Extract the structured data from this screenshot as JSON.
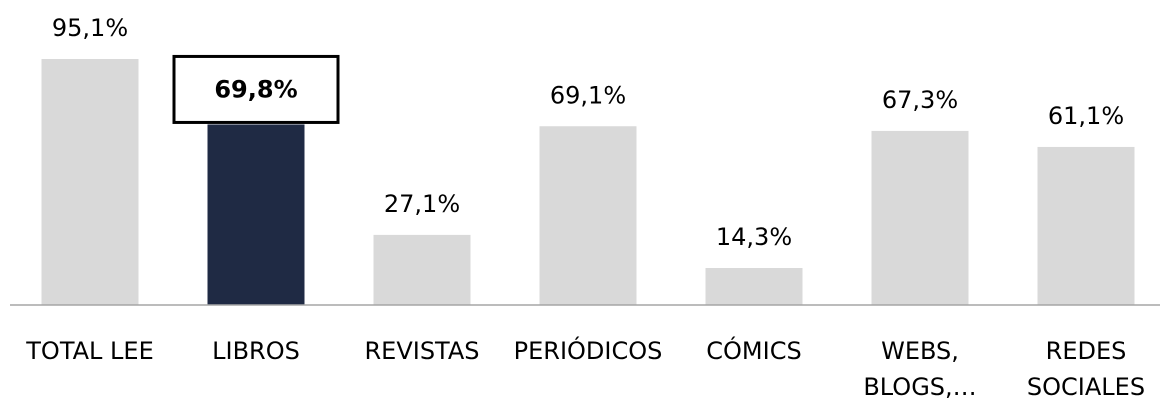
{
  "chart_data": {
    "type": "bar",
    "categories": [
      [
        "TOTAL LEE"
      ],
      [
        "LIBROS"
      ],
      [
        "REVISTAS"
      ],
      [
        "PERIÓDICOS"
      ],
      [
        "CÓMICS"
      ],
      [
        "WEBS,",
        "BLOGS,…"
      ],
      [
        "REDES",
        "SOCIALES"
      ]
    ],
    "values": [
      95.1,
      69.8,
      27.1,
      69.1,
      14.3,
      67.3,
      61.1
    ],
    "value_labels": [
      "95,1%",
      "69,8%",
      "27,1%",
      "69,1%",
      "14,3%",
      "67,3%",
      "61,1%"
    ],
    "colors": [
      "#d9d9d9",
      "#1f2a44",
      "#d9d9d9",
      "#d9d9d9",
      "#d9d9d9",
      "#d9d9d9",
      "#d9d9d9"
    ],
    "highlight": 1
  }
}
